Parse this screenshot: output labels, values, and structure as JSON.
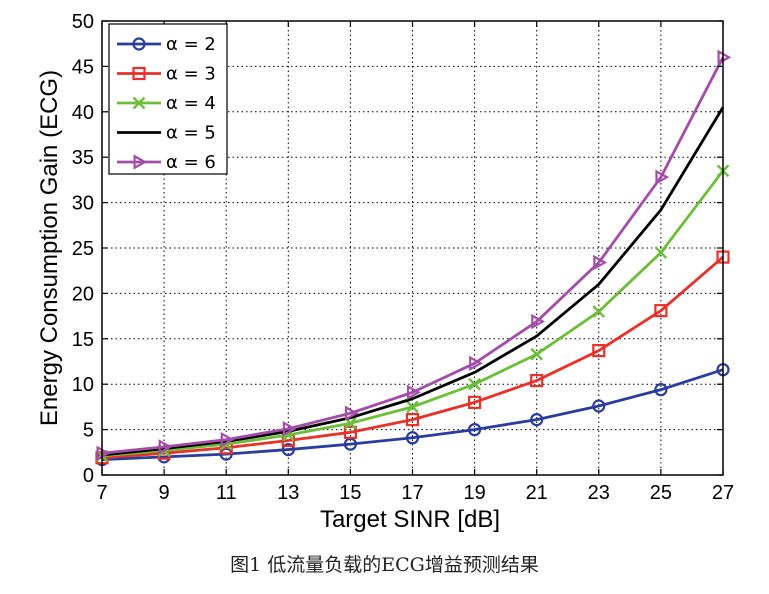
{
  "caption": "图1    低流量负载的ECG增益预测结果",
  "chart_data": {
    "type": "line",
    "xlabel": "Target SINR [dB]",
    "ylabel": "Energy Consumption Gain (ECG)",
    "xlim": [
      7,
      27
    ],
    "ylim": [
      0,
      50
    ],
    "xticks": [
      7,
      9,
      11,
      13,
      15,
      17,
      19,
      21,
      23,
      25,
      27
    ],
    "yticks": [
      0,
      5,
      10,
      15,
      20,
      25,
      30,
      35,
      40,
      45,
      50
    ],
    "grid": true,
    "legend_position": "top-left",
    "x": [
      7,
      9,
      11,
      13,
      15,
      17,
      19,
      21,
      23,
      25,
      27
    ],
    "series": [
      {
        "name": "α = 2",
        "color": "#2b3d9c",
        "marker": "circle",
        "values": [
          1.7,
          2.0,
          2.3,
          2.8,
          3.4,
          4.1,
          5.0,
          6.1,
          7.6,
          9.4,
          11.6
        ]
      },
      {
        "name": "α = 3",
        "color": "#e8312a",
        "marker": "square",
        "values": [
          1.9,
          2.4,
          3.0,
          3.8,
          4.7,
          6.1,
          8.0,
          10.4,
          13.7,
          18.1,
          24.0
        ]
      },
      {
        "name": "α = 4",
        "color": "#6cbe3a",
        "marker": "x",
        "values": [
          2.1,
          2.7,
          3.4,
          4.4,
          5.7,
          7.5,
          10.0,
          13.3,
          18.0,
          24.5,
          33.5
        ]
      },
      {
        "name": "α = 5",
        "color": "#000000",
        "marker": "none",
        "values": [
          2.2,
          2.9,
          3.7,
          4.8,
          6.3,
          8.4,
          11.3,
          15.3,
          21.0,
          29.2,
          40.5
        ]
      },
      {
        "name": "α = 6",
        "color": "#a24ea8",
        "marker": "triangle-right",
        "values": [
          2.4,
          3.1,
          3.9,
          5.1,
          6.8,
          9.1,
          12.3,
          16.9,
          23.4,
          32.8,
          46.0
        ]
      }
    ]
  }
}
